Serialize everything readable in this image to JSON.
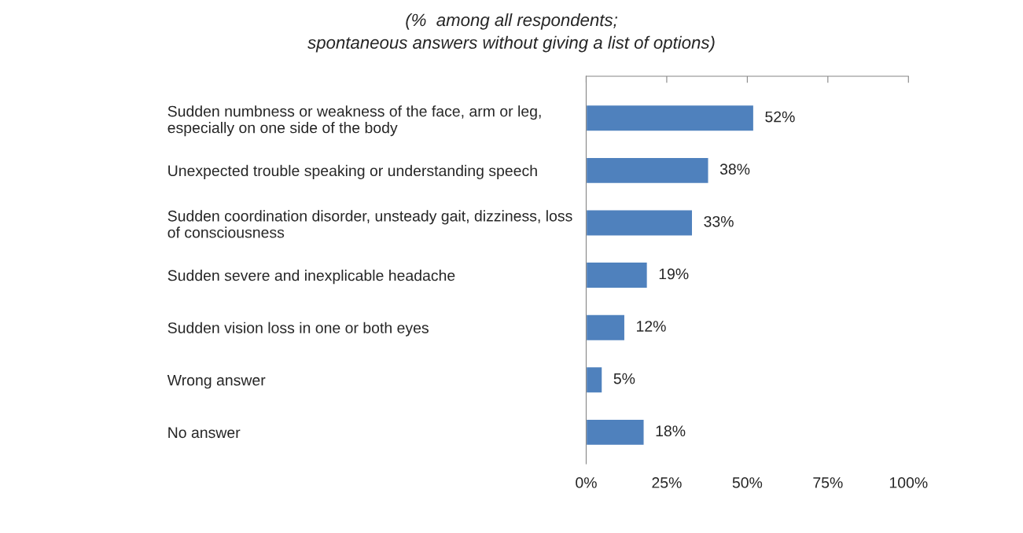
{
  "chart_data": {
    "type": "bar",
    "orientation": "horizontal",
    "title": "(%  among all respondents;\nspontaneous answers without giving a list of options)",
    "categories": [
      "Sudden numbness or weakness of the face, arm or leg,\nespecially on one side of the body",
      "Unexpected trouble speaking or understanding speech",
      "Sudden coordination disorder, unsteady gait, dizziness, loss\nof consciousness",
      "Sudden severe and inexplicable headache",
      "Sudden vision loss in one or both eyes",
      "Wrong answer",
      "No answer"
    ],
    "values": [
      52,
      38,
      33,
      19,
      12,
      5,
      18
    ],
    "value_labels": [
      "52%",
      "38%",
      "33%",
      "19%",
      "12%",
      "5%",
      "18%"
    ],
    "color": "#4f81bd",
    "xlim": [
      0,
      100
    ],
    "xticks": [
      {
        "value": 0,
        "label": "0%"
      },
      {
        "value": 25,
        "label": "25%"
      },
      {
        "value": 50,
        "label": "50%"
      },
      {
        "value": 75,
        "label": "75%"
      },
      {
        "value": 100,
        "label": "100%"
      }
    ],
    "grid": false,
    "legend": false
  }
}
